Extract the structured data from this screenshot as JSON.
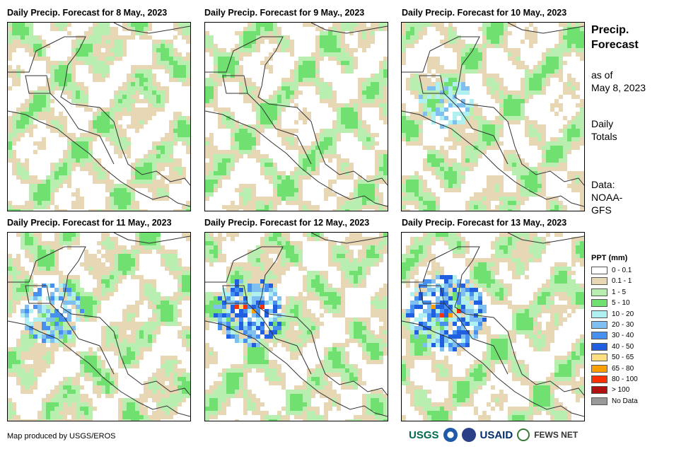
{
  "panels": [
    {
      "title": "Daily Precip. Forecast for 8 May., 2023"
    },
    {
      "title": "Daily Precip. Forecast for 9 May., 2023"
    },
    {
      "title": "Daily Precip. Forecast for 10 May., 2023"
    },
    {
      "title": "Daily Precip. Forecast for 11 May., 2023"
    },
    {
      "title": "Daily Precip. Forecast for 12 May., 2023"
    },
    {
      "title": "Daily Precip. Forecast for 13 May., 2023"
    }
  ],
  "sidebar": {
    "title_line1": "Precip.",
    "title_line2": "Forecast",
    "asof_line1": "as of",
    "asof_line2": "May 8, 2023",
    "daily_line1": "Daily",
    "daily_line2": "Totals",
    "data_line1": "Data:",
    "data_line2": "NOAA-",
    "data_line3": "GFS"
  },
  "legend": {
    "title": "PPT (mm)",
    "items": [
      {
        "label": "0 - 0.1",
        "color": "#ffffff"
      },
      {
        "label": "0.1 - 1",
        "color": "#e8d7b5"
      },
      {
        "label": "1 - 5",
        "color": "#b8efb0"
      },
      {
        "label": "5 - 10",
        "color": "#70e070"
      },
      {
        "label": "10 - 20",
        "color": "#b0f0f0"
      },
      {
        "label": "20 - 30",
        "color": "#80c0f0"
      },
      {
        "label": "30 - 40",
        "color": "#4890f0"
      },
      {
        "label": "40 - 50",
        "color": "#2060e0"
      },
      {
        "label": "50 - 65",
        "color": "#ffe080"
      },
      {
        "label": "65 - 80",
        "color": "#ffa000"
      },
      {
        "label": "80 - 100",
        "color": "#ff3000"
      },
      {
        "label": "> 100",
        "color": "#b01010"
      },
      {
        "label": "No Data",
        "color": "#999999"
      }
    ]
  },
  "footer": {
    "credit": "Map produced by USGS/EROS",
    "logos": [
      "USGS",
      "NOAA",
      "USAID",
      "FEWS NET"
    ]
  }
}
